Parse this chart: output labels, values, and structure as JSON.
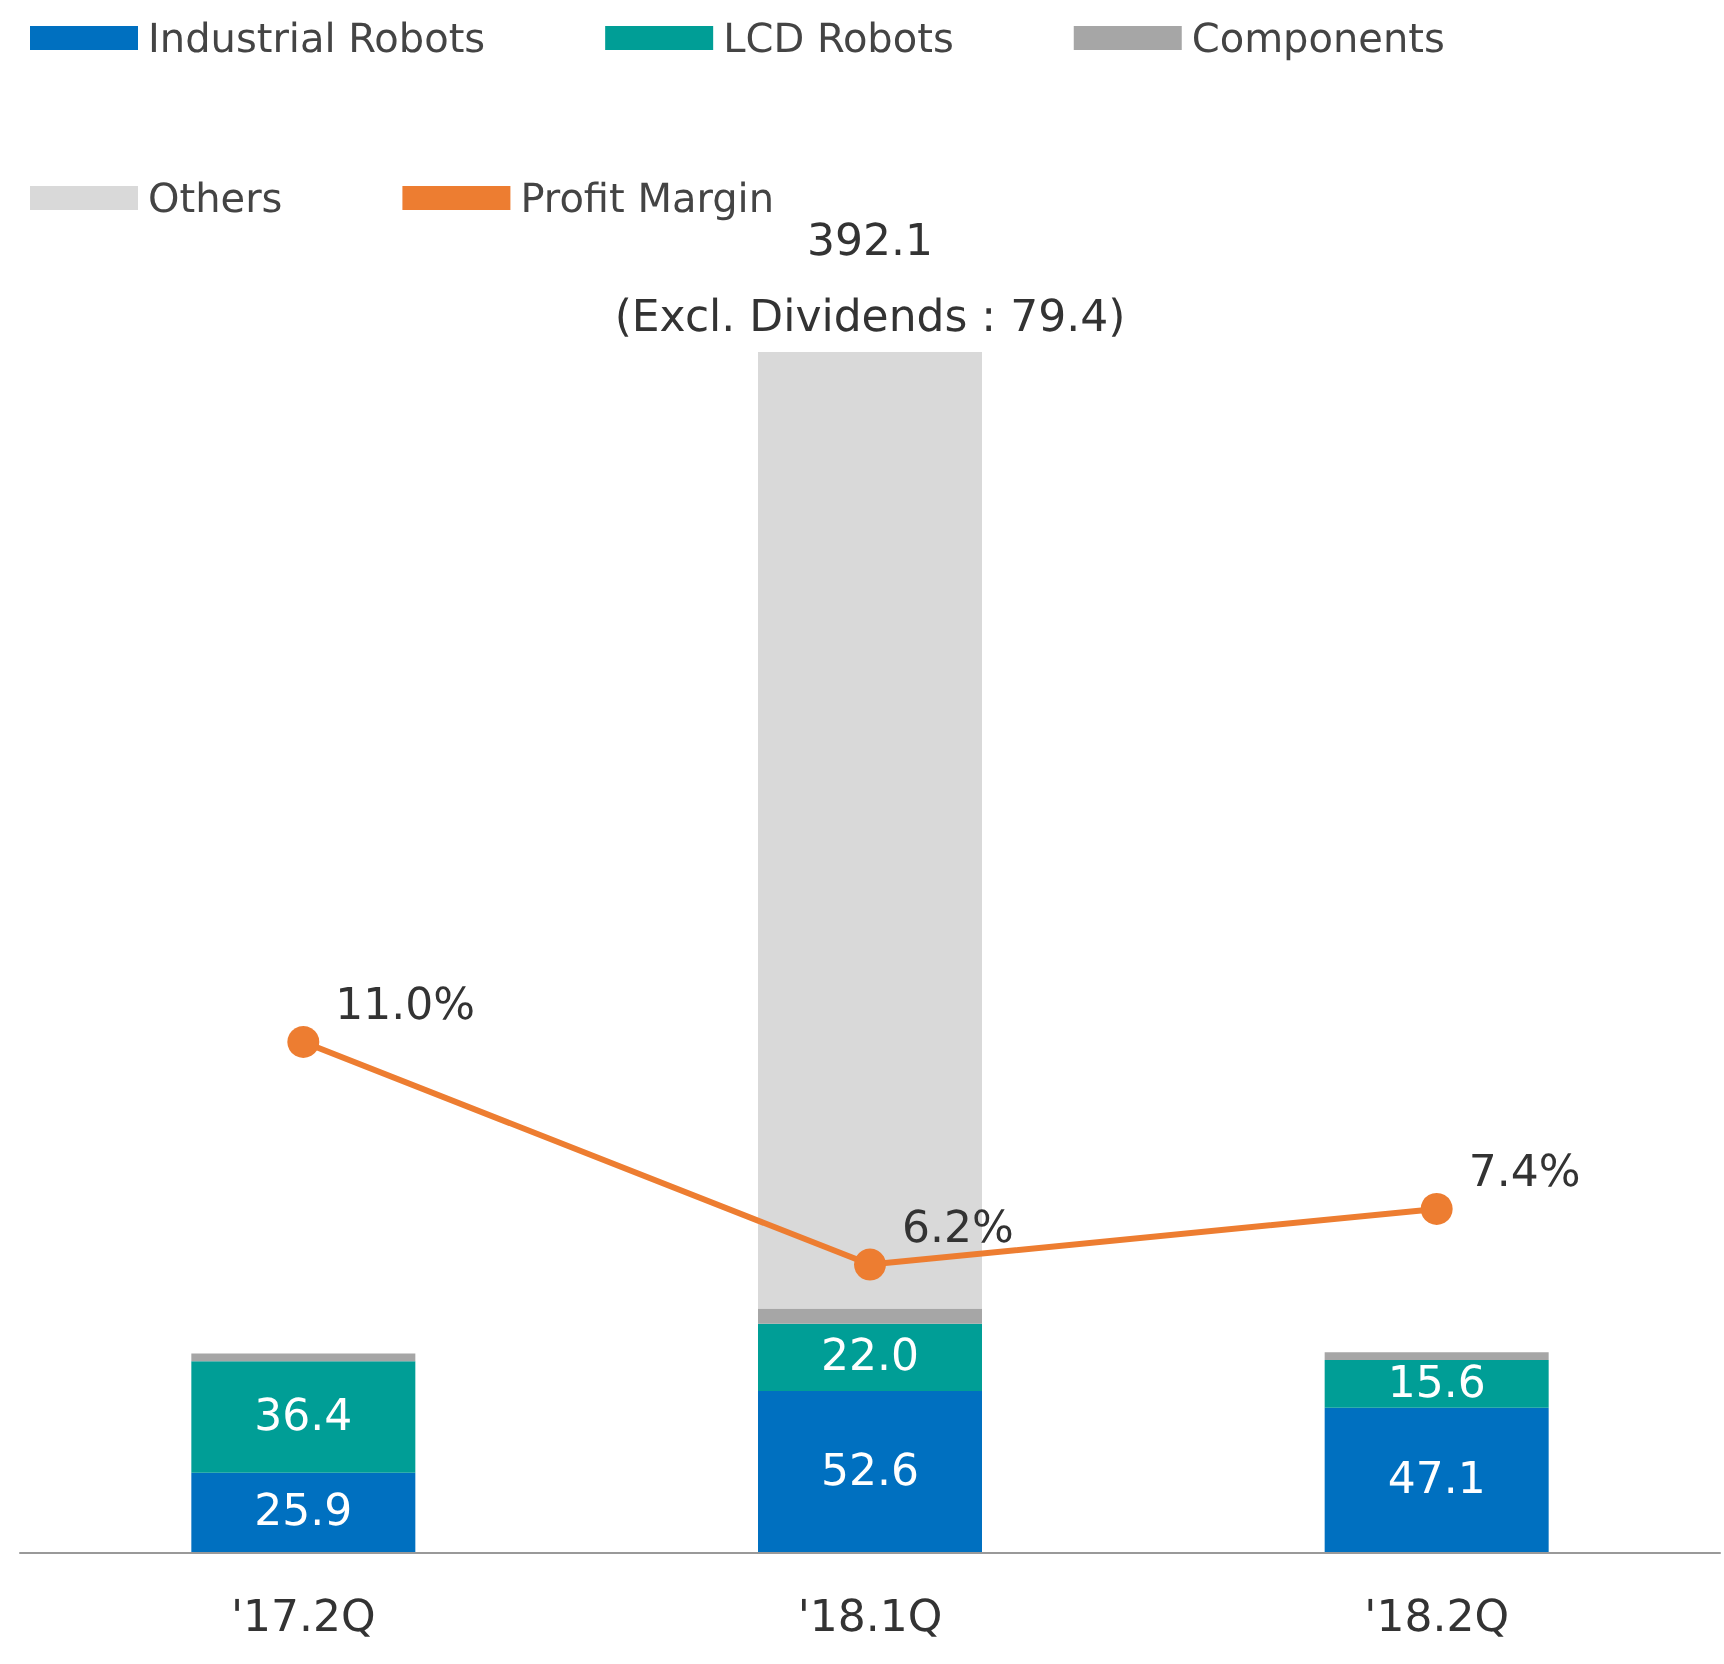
{
  "chart_data": {
    "type": "bar",
    "stacked": true,
    "categories": [
      "'17.2Q",
      "'18.1Q",
      "'18.2Q"
    ],
    "series": [
      {
        "name": "Industrial Robots",
        "color": "#0070c0",
        "values": [
          25.9,
          52.6,
          47.1
        ],
        "value_labels": [
          "25.9",
          "52.6",
          "47.1"
        ]
      },
      {
        "name": "LCD Robots",
        "color": "#009e96",
        "values": [
          36.4,
          22.0,
          15.6
        ],
        "value_labels": [
          "36.4",
          "22.0",
          "15.6"
        ]
      },
      {
        "name": "Components",
        "color": "#a6a6a6",
        "values": [
          2.6,
          5,
          2.6
        ]
      },
      {
        "name": "Others",
        "color": "#d9d9d9",
        "values": [
          0,
          312.5,
          0
        ]
      },
      {
        "name": "Profit Margin",
        "type": "line",
        "axis": "y2",
        "color": "#ed7d31",
        "values": [
          11.0,
          6.2,
          7.4
        ],
        "value_labels": [
          "11.0%",
          "6.2%",
          "7.4%"
        ]
      }
    ],
    "totals": [
      null,
      "392.1",
      null
    ],
    "annotations": [
      {
        "text": "(Excl. Dividends : 79.4)",
        "x": "'18.1Q",
        "y": 392.1
      }
    ],
    "tick_labels": "x",
    "legend": "top",
    "marker": "circle",
    "line_style": "solid"
  }
}
